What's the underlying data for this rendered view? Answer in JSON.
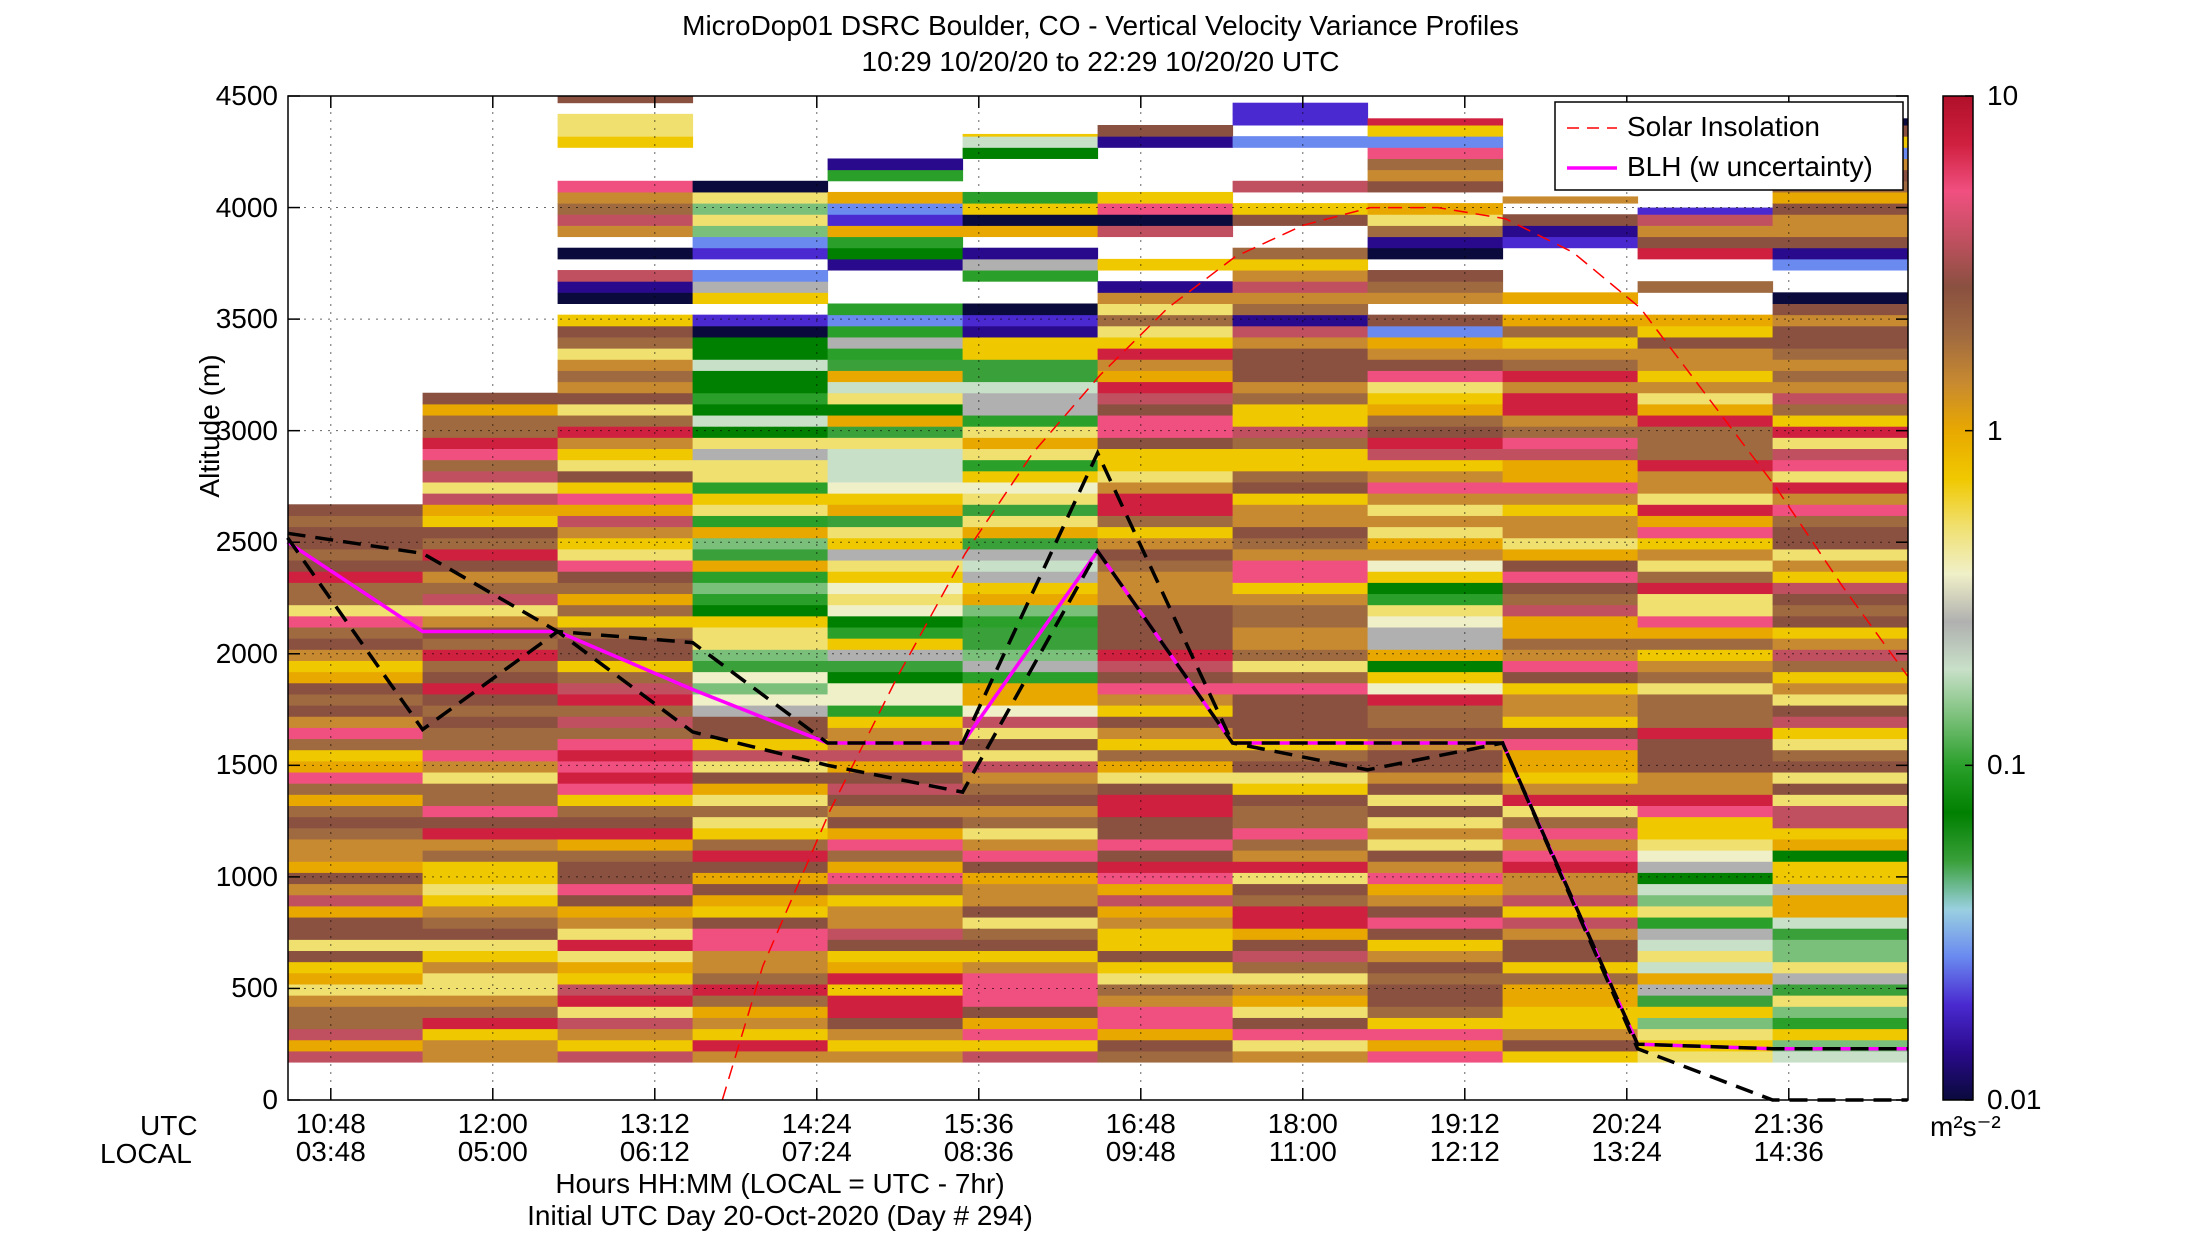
{
  "chart_data": {
    "type": "heatmap",
    "title": "MicroDop01 DSRC Boulder, CO - Vertical Velocity Variance Profiles",
    "subtitle": "10:29 10/20/20 to 22:29 10/20/20  UTC",
    "ylabel": "Altitude (m)",
    "xlabel": "Hours HH:MM  (LOCAL = UTC - 7hr)",
    "xlabel2": "Initial UTC Day 20-Oct-2020 (Day # 294)",
    "x_row_label_utc": "UTC",
    "x_row_label_local": "LOCAL",
    "ylim": [
      0,
      4500
    ],
    "yticks": [
      "0",
      "500",
      "1000",
      "1500",
      "2000",
      "2500",
      "3000",
      "3500",
      "4000",
      "4500"
    ],
    "xticks_utc": [
      "10:48",
      "12:00",
      "13:12",
      "14:24",
      "15:36",
      "16:48",
      "18:00",
      "19:12",
      "20:24",
      "21:36"
    ],
    "xticks_local": [
      "03:48",
      "05:00",
      "06:12",
      "07:24",
      "08:36",
      "09:48",
      "11:00",
      "12:12",
      "13:24",
      "14:36"
    ],
    "xtick_hours_utc": [
      10.8,
      12.0,
      13.2,
      14.4,
      15.6,
      16.8,
      18.0,
      19.2,
      20.4,
      21.6
    ],
    "xlim_hours_utc": [
      10.483,
      22.483
    ],
    "grid": "dotted",
    "colorbar": {
      "scale": "log",
      "range": [
        0.01,
        10
      ],
      "ticks": [
        "10",
        "1",
        "0.1",
        "0.01"
      ],
      "units": "m²s⁻²",
      "colors": [
        "#0a0a3c",
        "#2a0a8c",
        "#4a2ad0",
        "#6a8af0",
        "#9ad0e0",
        "#3aa03a",
        "#008000",
        "#2aa02a",
        "#7ac07a",
        "#c8e0c8",
        "#b0b0b0",
        "#f0f0c8",
        "#f0e070",
        "#f0c800",
        "#e8a800",
        "#c88a30",
        "#a06a40",
        "#8a5040",
        "#c05060",
        "#f05080",
        "#d02040",
        "#b0102a"
      ]
    },
    "columns": [
      {
        "hour_start": 10.48,
        "hour_end": 11.48,
        "bottom": 170,
        "top": 2670
      },
      {
        "hour_start": 11.48,
        "hour_end": 12.48,
        "bottom": 170,
        "top": 3170
      },
      {
        "hour_start": 12.48,
        "hour_end": 13.48,
        "bottom": 170,
        "top": 4500
      },
      {
        "hour_start": 13.48,
        "hour_end": 14.48,
        "bottom": 170,
        "top": 4270
      },
      {
        "hour_start": 14.48,
        "hour_end": 15.48,
        "bottom": 170,
        "top": 4270
      },
      {
        "hour_start": 15.48,
        "hour_end": 16.48,
        "bottom": 170,
        "top": 4330
      },
      {
        "hour_start": 16.48,
        "hour_end": 17.48,
        "bottom": 170,
        "top": 4400
      },
      {
        "hour_start": 17.48,
        "hour_end": 18.48,
        "bottom": 170,
        "top": 4500
      },
      {
        "hour_start": 18.48,
        "hour_end": 19.48,
        "bottom": 170,
        "top": 4400
      },
      {
        "hour_start": 19.48,
        "hour_end": 20.48,
        "bottom": 170,
        "top": 4050
      },
      {
        "hour_start": 20.48,
        "hour_end": 21.48,
        "bottom": 170,
        "top": 4000
      },
      {
        "hour_start": 21.48,
        "hour_end": 22.48,
        "bottom": 170,
        "top": 4400
      }
    ],
    "series": [
      {
        "name": "Solar Insolation",
        "style": "red-dashed",
        "color": "#ff0000",
        "x": [
          13.7,
          14.0,
          14.5,
          15.0,
          15.5,
          16.0,
          16.5,
          17.0,
          17.5,
          18.0,
          18.5,
          19.0,
          19.5,
          20.0,
          20.5,
          21.0,
          21.5,
          22.0,
          22.48
        ],
        "y": [
          0,
          600,
          1300,
          1900,
          2450,
          2900,
          3250,
          3550,
          3780,
          3920,
          4000,
          4000,
          3950,
          3800,
          3550,
          3150,
          2750,
          2300,
          1900
        ]
      },
      {
        "name": "BLH (w uncertainty)",
        "color": "#ff00ff",
        "x": [
          10.48,
          11.48,
          12.48,
          13.48,
          14.48,
          15.48,
          16.48,
          17.48,
          18.48,
          19.48,
          20.48,
          21.48,
          22.48
        ],
        "y": [
          2500,
          2100,
          2100,
          1840,
          1600,
          1600,
          2460,
          1600,
          1600,
          1600,
          250,
          230,
          230
        ]
      },
      {
        "name": "BLH upper",
        "style": "black-dashed",
        "color": "#000000",
        "x": [
          10.48,
          11.48,
          12.48,
          13.48,
          14.48,
          15.48,
          16.48,
          17.48,
          18.48,
          19.48,
          20.48,
          21.48,
          22.48
        ],
        "y": [
          2540,
          2450,
          2100,
          2050,
          1600,
          1600,
          2900,
          1600,
          1600,
          1600,
          250,
          230,
          230
        ]
      },
      {
        "name": "BLH lower",
        "style": "black-dashed",
        "color": "#000000",
        "x": [
          10.48,
          11.48,
          12.48,
          13.48,
          14.48,
          15.48,
          16.48,
          17.48,
          18.48,
          19.48,
          20.48,
          21.48,
          22.48
        ],
        "y": [
          2520,
          1660,
          2100,
          1650,
          1500,
          1380,
          2460,
          1600,
          1480,
          1600,
          230,
          0,
          0
        ]
      }
    ],
    "legend": {
      "placement": "top-right",
      "entries": [
        "Solar Insolation",
        "BLH (w uncertainty)"
      ]
    }
  }
}
